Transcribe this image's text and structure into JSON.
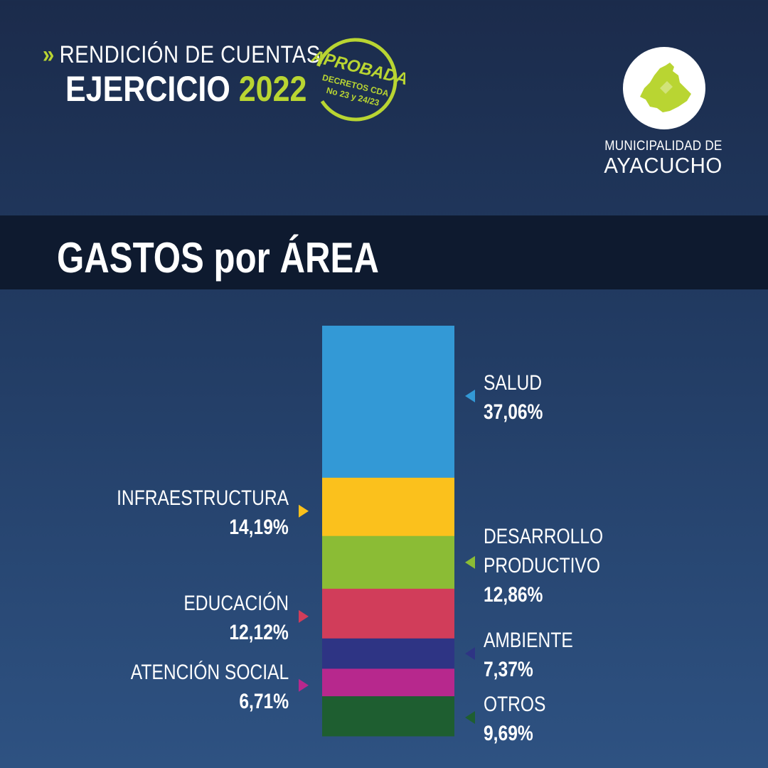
{
  "header": {
    "line1": "RENDICIÓN DE CUENTAS",
    "line2_prefix": "EJERCICIO",
    "year": "2022",
    "chevron": "»"
  },
  "stamp": {
    "title": "APROBADA",
    "line1": "DECRETOS CDA",
    "line2": "No 23 y 24/23"
  },
  "logo": {
    "line1": "MUNICIPALIDAD DE",
    "line2": "AYACUCHO",
    "icon": "map-icon"
  },
  "colors": {
    "accent": "#b9d532"
  },
  "chart_data": {
    "type": "bar",
    "stacked": true,
    "title": "GASTOS por ÁREA",
    "unit": "%",
    "segments": [
      {
        "name": "SALUD",
        "value": 37.06,
        "label": "37,06%",
        "color": "#3399d6",
        "side": "right"
      },
      {
        "name": "INFRAESTRUCTURA",
        "value": 14.19,
        "label": "14,19%",
        "color": "#fbc11c",
        "side": "left"
      },
      {
        "name": "DESARROLLO PRODUCTIVO",
        "name_lines": [
          "DESARROLLO",
          "PRODUCTIVO"
        ],
        "value": 12.86,
        "label": "12,86%",
        "color": "#8bbc35",
        "side": "right"
      },
      {
        "name": "EDUCACIÓN",
        "value": 12.12,
        "label": "12,12%",
        "color": "#d13d5a",
        "side": "left"
      },
      {
        "name": "AMBIENTE",
        "value": 7.37,
        "label": "7,37%",
        "color": "#2e3484",
        "side": "right"
      },
      {
        "name": "ATENCIÓN SOCIAL",
        "value": 6.71,
        "label": "6,71%",
        "color": "#b7288d",
        "side": "left"
      },
      {
        "name": "OTROS",
        "value": 9.69,
        "label": "9,69%",
        "color": "#1e5e30",
        "side": "right"
      }
    ]
  }
}
